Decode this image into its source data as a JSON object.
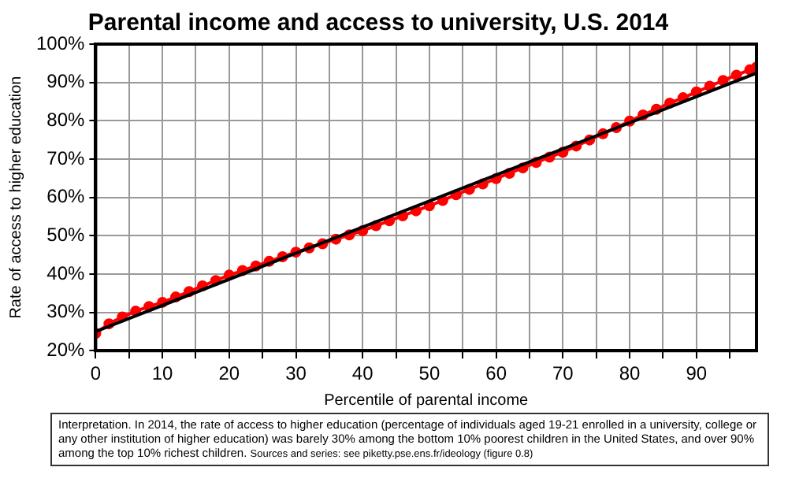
{
  "chart_data": {
    "type": "line",
    "title": "Parental income and access to university, U.S. 2014",
    "xlabel": "Percentile of parental income",
    "ylabel": "Rate of access to higher education",
    "xlim": [
      0,
      99
    ],
    "ylim": [
      20,
      100
    ],
    "xticks": [
      0,
      {
        "value": 5,
        "label": null
      },
      10,
      {
        "value": 15,
        "label": null
      },
      20,
      {
        "value": 25,
        "label": null
      },
      30,
      {
        "value": 35,
        "label": null
      },
      40,
      {
        "value": 45,
        "label": null
      },
      50,
      {
        "value": 55,
        "label": null
      },
      60,
      {
        "value": 65,
        "label": null
      },
      70,
      {
        "value": 75,
        "label": null
      },
      80,
      {
        "value": 85,
        "label": null
      },
      90,
      {
        "value": 95,
        "label": null
      }
    ],
    "yticks": [
      {
        "value": 20,
        "label": "20%"
      },
      {
        "value": 30,
        "label": "30%"
      },
      {
        "value": 40,
        "label": "40%"
      },
      {
        "value": 50,
        "label": "50%"
      },
      {
        "value": 60,
        "label": "60%"
      },
      {
        "value": 70,
        "label": "70%"
      },
      {
        "value": 80,
        "label": "80%"
      },
      {
        "value": 90,
        "label": "90%"
      },
      {
        "value": 100,
        "label": "100%"
      }
    ],
    "grid": true,
    "legend": false,
    "series": [
      {
        "color": "#ff0000",
        "marker": "circle",
        "x": [
          0,
          2,
          4,
          6,
          8,
          10,
          12,
          14,
          16,
          18,
          20,
          22,
          24,
          26,
          28,
          30,
          32,
          34,
          36,
          38,
          40,
          42,
          44,
          46,
          48,
          50,
          52,
          54,
          56,
          58,
          60,
          62,
          64,
          66,
          68,
          70,
          72,
          74,
          76,
          78,
          80,
          82,
          84,
          86,
          88,
          90,
          92,
          94,
          96,
          98,
          99
        ],
        "values": [
          24.5,
          27.0,
          28.8,
          30.3,
          31.5,
          32.6,
          34.0,
          35.4,
          36.9,
          38.3,
          39.7,
          40.9,
          42.1,
          43.3,
          44.5,
          45.7,
          46.8,
          47.9,
          49.1,
          50.2,
          51.3,
          52.6,
          53.9,
          55.2,
          56.5,
          57.8,
          59.2,
          60.7,
          62.1,
          63.5,
          64.9,
          66.3,
          67.7,
          69.1,
          70.5,
          71.8,
          73.4,
          75.0,
          76.6,
          78.2,
          79.9,
          81.5,
          83.0,
          84.6,
          86.0,
          87.5,
          89.0,
          90.5,
          91.9,
          93.3,
          94.0
        ]
      },
      {
        "type": "line",
        "color": "#000000",
        "marker": "none",
        "x": [
          0,
          99
        ],
        "values": [
          25,
          92.4
        ]
      }
    ],
    "annotations": [
      "Interpretation. In 2014, the rate of access to higher education (percentage of individuals aged 19-21 enrolled in a university, college or any other institution of higher education) was barely 30% among the bottom 10% poorest children in the United States, and over 90% among the top 10% richest children.",
      "Sources and series: see piketty.pse.ens.fr/ideology (figure 0.8)"
    ]
  }
}
